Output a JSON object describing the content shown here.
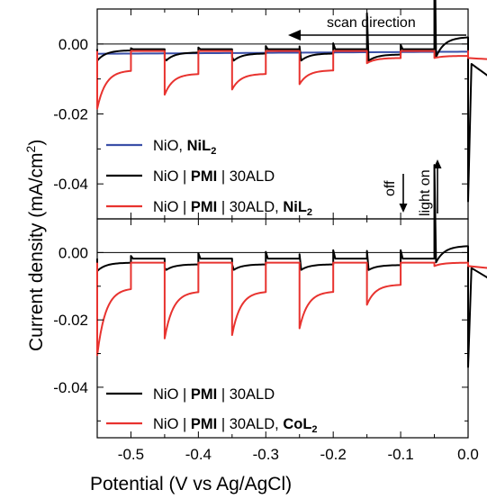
{
  "figure": {
    "xlabel": "Potential (V vs Ag/AgCl)",
    "ylabel_main": "Current density (mA/cm",
    "ylabel_sup": "2",
    "ylabel_close": ")"
  },
  "annotations": {
    "scan_direction": "scan direction",
    "off": "off",
    "light_on": "light on"
  },
  "chart_data": [
    {
      "type": "line",
      "panel": "top",
      "x_range": [
        -0.55,
        0.0
      ],
      "ylim": [
        -0.05,
        0.01
      ],
      "x_ticks": [
        -0.5,
        -0.4,
        -0.3,
        -0.2,
        -0.1,
        0.0
      ],
      "y_ticks": [
        0.0,
        -0.02,
        -0.04
      ],
      "y_tick_labels": [
        "0.00",
        "-0.02",
        "-0.04"
      ],
      "light_chopping": {
        "period_V": 0.05,
        "light_on_intervals": [
          [
            -0.55,
            -0.5
          ],
          [
            -0.45,
            -0.4
          ],
          [
            -0.35,
            -0.3
          ],
          [
            -0.25,
            -0.2
          ],
          [
            -0.15,
            -0.1
          ],
          [
            -0.05,
            0.0
          ]
        ]
      },
      "legend": [
        {
          "pre": "NiO, ",
          "bold": "NiL",
          "sub": "2",
          "post": "",
          "color": "#3a4fa8"
        },
        {
          "pre": "NiO",
          "bold": "PMI",
          "sub": "",
          "post": "30ALD",
          "color": "#000000",
          "bars": true
        },
        {
          "pre": "NiO",
          "bold": "PMI",
          "sub": "",
          "post": "30ALD, ",
          "bold2": "NiL",
          "sub2": "2",
          "color": "#e8332f",
          "bars": true
        }
      ],
      "series": [
        {
          "name": "NiO, NiL2",
          "color": "#3a4fa8",
          "baseline": -0.0028,
          "dark_level": -0.0022,
          "dip": 0.0,
          "spike": 0.0,
          "decay": 0.0
        },
        {
          "name": "NiO|PMI|30ALD",
          "color": "#000000",
          "dark_level": -0.0015,
          "light_levels": [
            -0.0048,
            -0.0052,
            -0.0052,
            -0.0052,
            -0.0052,
            -0.005
          ],
          "decays": [
            0.003,
            0.0028,
            0.0025,
            0.0025,
            0.0022,
            0.007
          ],
          "dips": [
            0.0,
            -0.001,
            -0.0015,
            -0.0045,
            -0.014,
            -0.04
          ],
          "spikes": [
            0.0003,
            0.0005,
            0.0009,
            0.0017,
            0.0013,
            0.0006
          ]
        },
        {
          "name": "NiO|PMI|30ALD, NiL2",
          "color": "#e8332f",
          "dark_level": -0.002,
          "light_levels": [
            -0.0185,
            -0.0145,
            -0.013,
            -0.0115,
            -0.0055,
            -0.004
          ],
          "decays": [
            0.011,
            0.006,
            0.0045,
            0.004,
            0.0015,
            0.0006
          ],
          "dips": [
            0,
            0,
            0,
            0,
            0,
            0
          ],
          "spikes": [
            0.0,
            0.0,
            0.0,
            0.0,
            0.0,
            0.0
          ]
        }
      ]
    },
    {
      "type": "line",
      "panel": "bottom",
      "x_range": [
        -0.55,
        0.0
      ],
      "ylim": [
        -0.055,
        0.01
      ],
      "x_ticks": [
        -0.5,
        -0.4,
        -0.3,
        -0.2,
        -0.1,
        0.0
      ],
      "x_tick_labels": [
        "-0.5",
        "-0.4",
        "-0.3",
        "-0.2",
        "-0.1",
        "0.0"
      ],
      "y_ticks": [
        0.0,
        -0.02,
        -0.04
      ],
      "y_tick_labels": [
        "0.00",
        "-0.02",
        "-0.04"
      ],
      "legend": [
        {
          "pre": "NiO",
          "bold": "PMI",
          "sub": "",
          "post": "30ALD",
          "color": "#000000",
          "bars": true
        },
        {
          "pre": "NiO",
          "bold": "PMI",
          "sub": "",
          "post": "30ALD, ",
          "bold2": "CoL",
          "sub2": "2",
          "color": "#e8332f",
          "bars": true
        }
      ],
      "series": [
        {
          "name": "NiO|PMI|30ALD",
          "color": "#000000",
          "dark_level": -0.0018,
          "light_levels": [
            -0.0055,
            -0.0055,
            -0.0055,
            -0.0055,
            -0.0055,
            -0.004
          ],
          "decays": [
            0.0025,
            0.002,
            0.002,
            0.002,
            0.0018,
            0.006
          ],
          "dips": [
            0.0,
            -0.001,
            -0.002,
            -0.005,
            -0.006,
            -0.03
          ],
          "spikes": [
            0.0008,
            0.0016,
            0.002,
            0.0025,
            0.0025,
            0.0012
          ]
        },
        {
          "name": "NiO|PMI|30ALD, CoL2",
          "color": "#e8332f",
          "dark_level": -0.003,
          "light_levels": [
            -0.0305,
            -0.0255,
            -0.0245,
            -0.0225,
            -0.0155,
            -0.004
          ],
          "decays": [
            0.02,
            0.014,
            0.013,
            0.011,
            0.006,
            0.001
          ],
          "dips": [
            0,
            0,
            0,
            0,
            0,
            0
          ],
          "spikes": [
            0,
            0,
            0,
            0,
            0,
            0
          ]
        }
      ]
    }
  ]
}
